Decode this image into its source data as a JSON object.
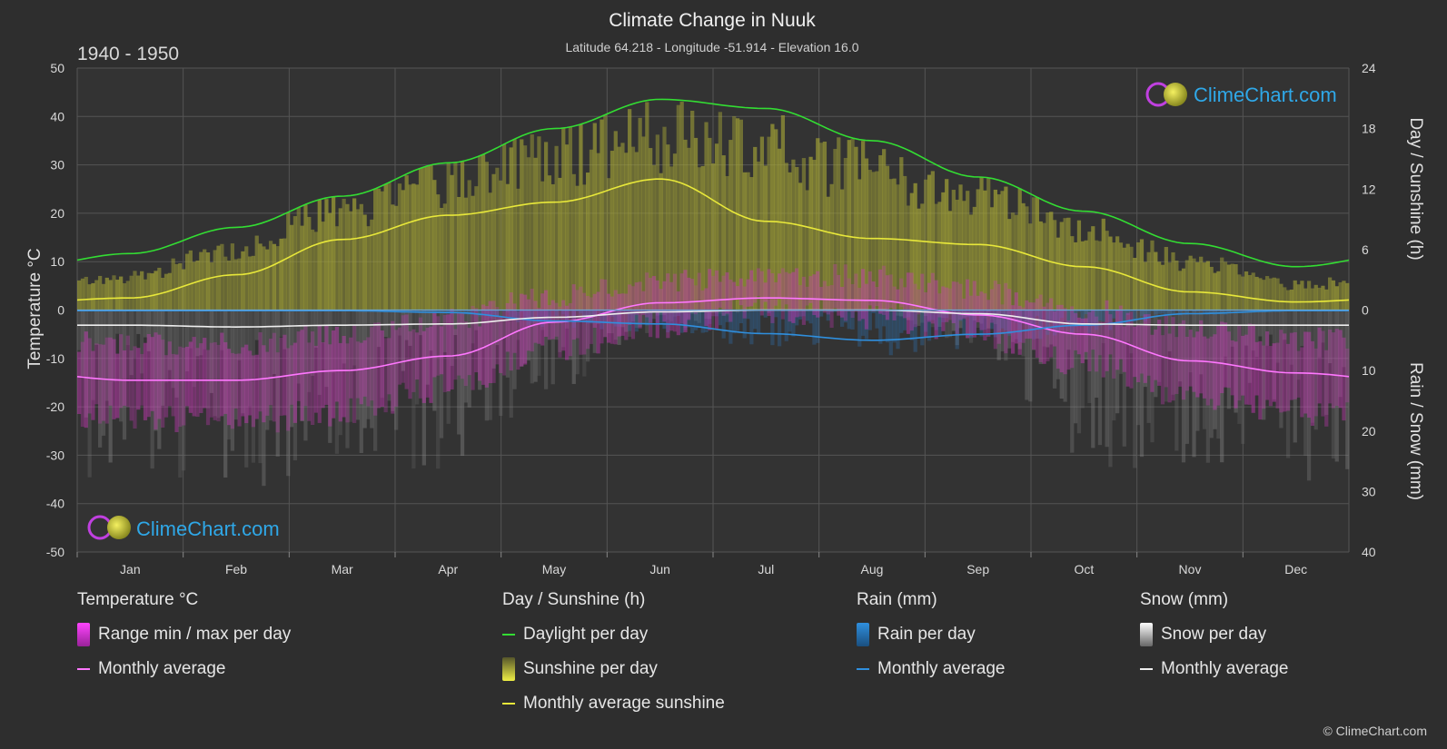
{
  "header": {
    "title": "Climate Change in Nuuk",
    "subtitle": "Latitude 64.218 - Longitude -51.914 - Elevation 16.0",
    "period": "1940 - 1950"
  },
  "brand": {
    "name": "ClimeChart.com",
    "copyright": "© ClimeChart.com"
  },
  "colors": {
    "background": "#2e2e2e",
    "daylight": "#33dd33",
    "sunshine_avg": "#e8e83a",
    "sunshine_fill": "#c8c83a",
    "temp_avg": "#ff77ff",
    "temp_range": "#dd33cc",
    "rain": "#2f8fde",
    "snow": "#dddddd",
    "brand_text": "#2fa8e8"
  },
  "chart_data": {
    "type": "line",
    "categories": [
      "Jan",
      "Feb",
      "Mar",
      "Apr",
      "May",
      "Jun",
      "Jul",
      "Aug",
      "Sep",
      "Oct",
      "Nov",
      "Dec"
    ],
    "axes": {
      "left": {
        "label": "Temperature °C",
        "range": [
          -50,
          50
        ],
        "ticks": [
          50,
          40,
          30,
          20,
          10,
          0,
          -10,
          -20,
          -30,
          -40,
          -50
        ]
      },
      "right_top": {
        "label": "Day / Sunshine (h)",
        "range": [
          0,
          24
        ],
        "ticks": [
          24,
          18,
          12,
          6,
          0
        ]
      },
      "right_bottom": {
        "label": "Rain / Snow (mm)",
        "range": [
          0,
          40
        ],
        "ticks": [
          10,
          20,
          30,
          40
        ]
      }
    },
    "grid": true,
    "series": [
      {
        "name": "Daylight per day",
        "unit": "h",
        "values": [
          5.6,
          8.2,
          11.3,
          14.6,
          18.0,
          20.9,
          20.0,
          16.8,
          13.2,
          9.8,
          6.6,
          4.3
        ]
      },
      {
        "name": "Monthly average sunshine",
        "unit": "h",
        "values": [
          1.2,
          3.5,
          7.0,
          9.4,
          10.7,
          13.0,
          8.8,
          7.1,
          6.5,
          4.3,
          1.8,
          0.8
        ]
      },
      {
        "name": "Monthly average",
        "group": "Temperature °C",
        "unit": "°C",
        "values": [
          -14.5,
          -14.5,
          -12.5,
          -9.5,
          -2.5,
          1.5,
          2.5,
          2.0,
          -1.0,
          -5.0,
          -10.5,
          -13.0
        ]
      },
      {
        "name": "Monthly average",
        "group": "Rain (mm)",
        "unit": "mm",
        "values": [
          0.1,
          0.1,
          0.1,
          0.4,
          1.8,
          2.3,
          3.9,
          5.0,
          4.0,
          2.5,
          0.6,
          0.1
        ]
      },
      {
        "name": "Monthly average",
        "group": "Snow (mm)",
        "unit": "mm",
        "values": [
          2.5,
          2.8,
          2.5,
          2.3,
          1.2,
          0.3,
          0.0,
          0.0,
          0.6,
          2.3,
          2.5,
          2.5
        ]
      }
    ],
    "temperature_range": {
      "name": "Range min / max per day",
      "min": [
        -22,
        -23,
        -21,
        -16,
        -8,
        -3,
        0,
        -1,
        -5,
        -11,
        -18,
        -21
      ],
      "max": [
        -7,
        -7,
        -5,
        -2,
        3,
        6,
        7,
        7,
        4,
        0,
        -4,
        -6
      ]
    },
    "sunshine_per_day_max": [
      3.5,
      6.5,
      10.5,
      13.5,
      16,
      17.5,
      16.5,
      14,
      12,
      8.5,
      5,
      2.5
    ]
  },
  "legend": [
    {
      "heading": "Temperature °C",
      "items": [
        {
          "label": "Range min / max per day",
          "kind": "box",
          "color": "#dd33cc"
        },
        {
          "label": "Monthly average",
          "kind": "line",
          "color": "#ff77ff"
        }
      ]
    },
    {
      "heading": "Day / Sunshine (h)",
      "items": [
        {
          "label": "Daylight per day",
          "kind": "line",
          "color": "#33dd33"
        },
        {
          "label": "Sunshine per day",
          "kind": "box",
          "color": "#c8c83a"
        },
        {
          "label": "Monthly average sunshine",
          "kind": "line",
          "color": "#e8e83a"
        }
      ]
    },
    {
      "heading": "Rain (mm)",
      "items": [
        {
          "label": "Rain per day",
          "kind": "box",
          "color": "#2f8fde"
        },
        {
          "label": "Monthly average",
          "kind": "line",
          "color": "#2f8fde"
        }
      ]
    },
    {
      "heading": "Snow (mm)",
      "items": [
        {
          "label": "Snow per day",
          "kind": "box",
          "color": "#dddddd"
        },
        {
          "label": "Monthly average",
          "kind": "line",
          "color": "#eeeeee"
        }
      ]
    }
  ]
}
